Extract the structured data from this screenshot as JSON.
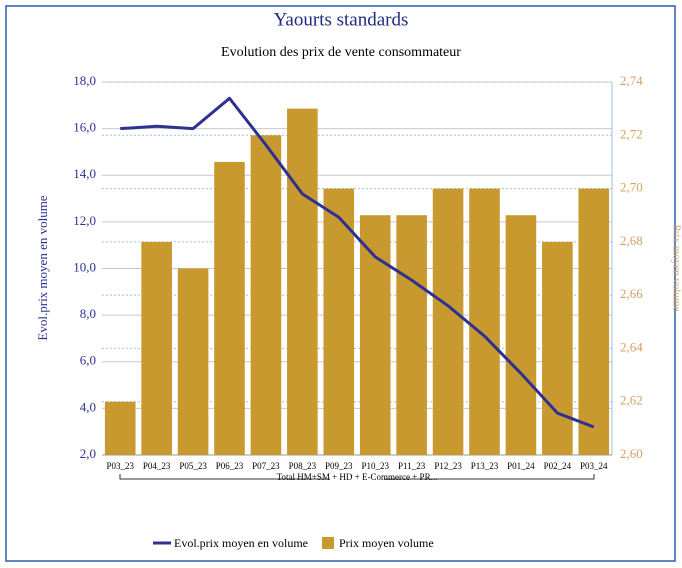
{
  "chart_data": {
    "type": "combo",
    "title": "Yaourts standards",
    "subtitle": "Evolution des prix de vente consommateur",
    "categories": [
      "P03_23",
      "P04_23",
      "P05_23",
      "P06_23",
      "P07_23",
      "P08_23",
      "P09_23",
      "P10_23",
      "P11_23",
      "P12_23",
      "P13_23",
      "P01_24",
      "P02_24",
      "P03_24"
    ],
    "group_label": "Total HM+SM + HD + E-Commerce + PR...",
    "y_label": "Evol.prix moyen en volume",
    "y2_label": "Prix moyen volume",
    "ylim": [
      2,
      18
    ],
    "yticks": [
      {
        "value": 2,
        "label": "2,0"
      },
      {
        "value": 4,
        "label": "4,0"
      },
      {
        "value": 6,
        "label": "6,0"
      },
      {
        "value": 8,
        "label": "8,0"
      },
      {
        "value": 10,
        "label": "10,0"
      },
      {
        "value": 12,
        "label": "12,0"
      },
      {
        "value": 14,
        "label": "14,0"
      },
      {
        "value": 16,
        "label": "16,0"
      },
      {
        "value": 18,
        "label": "18,0"
      }
    ],
    "y2lim": [
      2.6,
      2.74
    ],
    "y2ticks": [
      {
        "value": 2.6,
        "label": "2,60"
      },
      {
        "value": 2.62,
        "label": "2,62"
      },
      {
        "value": 2.64,
        "label": "2,64"
      },
      {
        "value": 2.66,
        "label": "2,66"
      },
      {
        "value": 2.68,
        "label": "2,68"
      },
      {
        "value": 2.7,
        "label": "2,70"
      },
      {
        "value": 2.72,
        "label": "2,72"
      },
      {
        "value": 2.74,
        "label": "2,74"
      }
    ],
    "grid": true,
    "series": [
      {
        "name": "Evol.prix moyen en volume",
        "type": "line",
        "axis": "y",
        "color": "#2e3192",
        "values": [
          16.0,
          16.1,
          16.0,
          17.3,
          15.3,
          13.2,
          12.2,
          10.5,
          9.5,
          8.4,
          7.1,
          5.5,
          3.8,
          3.2
        ]
      },
      {
        "name": "Prix moyen volume",
        "type": "bar",
        "axis": "y2",
        "color": "#c8992f",
        "values": [
          2.62,
          2.68,
          2.67,
          2.71,
          2.72,
          2.73,
          2.7,
          2.69,
          2.69,
          2.7,
          2.7,
          2.69,
          2.68,
          2.7
        ]
      }
    ]
  }
}
